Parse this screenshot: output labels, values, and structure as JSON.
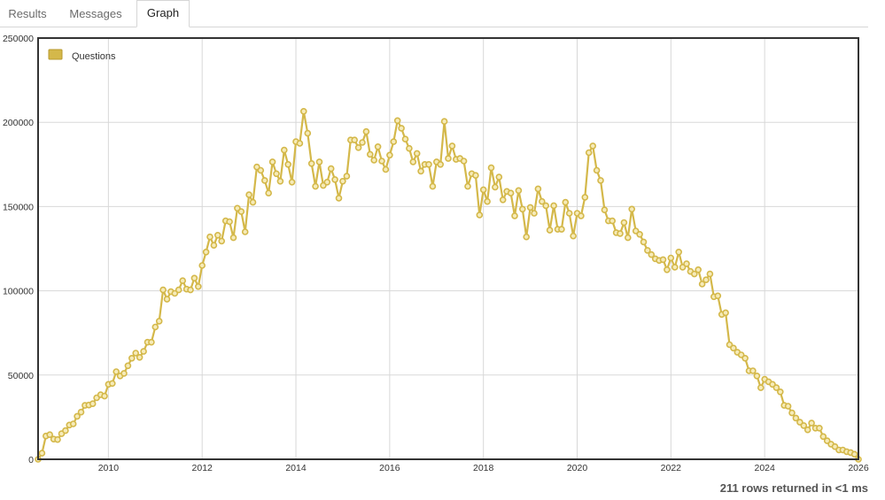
{
  "tabs": [
    {
      "label": "Results",
      "active": false
    },
    {
      "label": "Messages",
      "active": false
    },
    {
      "label": "Graph",
      "active": true
    }
  ],
  "footer": {
    "status": "211 rows returned in <1 ms"
  },
  "colors": {
    "series": "#d4b84a",
    "marker_fill": "#f6ebb8",
    "grid": "#d8d8d8",
    "frame": "#333333"
  },
  "chart_data": {
    "type": "line",
    "series": [
      {
        "name": "Questions",
        "x": [
          "2008-07",
          "2008-08",
          "2008-09",
          "2008-10",
          "2008-11",
          "2008-12",
          "2009-01",
          "2009-02",
          "2009-03",
          "2009-04",
          "2009-05",
          "2009-06",
          "2009-07",
          "2009-08",
          "2009-09",
          "2009-10",
          "2009-11",
          "2009-12",
          "2010-01",
          "2010-02",
          "2010-03",
          "2010-04",
          "2010-05",
          "2010-06",
          "2010-07",
          "2010-08",
          "2010-09",
          "2010-10",
          "2010-11",
          "2010-12",
          "2011-01",
          "2011-02",
          "2011-03",
          "2011-04",
          "2011-05",
          "2011-06",
          "2011-07",
          "2011-08",
          "2011-09",
          "2011-10",
          "2011-11",
          "2011-12",
          "2012-01",
          "2012-02",
          "2012-03",
          "2012-04",
          "2012-05",
          "2012-06",
          "2012-07",
          "2012-08",
          "2012-09",
          "2012-10",
          "2012-11",
          "2012-12",
          "2013-01",
          "2013-02",
          "2013-03",
          "2013-04",
          "2013-05",
          "2013-06",
          "2013-07",
          "2013-08",
          "2013-09",
          "2013-10",
          "2013-11",
          "2013-12",
          "2014-01",
          "2014-02",
          "2014-03",
          "2014-04",
          "2014-05",
          "2014-06",
          "2014-07",
          "2014-08",
          "2014-09",
          "2014-10",
          "2014-11",
          "2014-12",
          "2015-01",
          "2015-02",
          "2015-03",
          "2015-04",
          "2015-05",
          "2015-06",
          "2015-07",
          "2015-08",
          "2015-09",
          "2015-10",
          "2015-11",
          "2015-12",
          "2016-01",
          "2016-02",
          "2016-03",
          "2016-04",
          "2016-05",
          "2016-06",
          "2016-07",
          "2016-08",
          "2016-09",
          "2016-10",
          "2016-11",
          "2016-12",
          "2017-01",
          "2017-02",
          "2017-03",
          "2017-04",
          "2017-05",
          "2017-06",
          "2017-07",
          "2017-08",
          "2017-09",
          "2017-10",
          "2017-11",
          "2017-12",
          "2018-01",
          "2018-02",
          "2018-03",
          "2018-04",
          "2018-05",
          "2018-06",
          "2018-07",
          "2018-08",
          "2018-09",
          "2018-10",
          "2018-11",
          "2018-12",
          "2019-01",
          "2019-02",
          "2019-03",
          "2019-04",
          "2019-05",
          "2019-06",
          "2019-07",
          "2019-08",
          "2019-09",
          "2019-10",
          "2019-11",
          "2019-12",
          "2020-01",
          "2020-02",
          "2020-03",
          "2020-04",
          "2020-05",
          "2020-06",
          "2020-07",
          "2020-08",
          "2020-09",
          "2020-10",
          "2020-11",
          "2020-12",
          "2021-01",
          "2021-02",
          "2021-03",
          "2021-04",
          "2021-05",
          "2021-06",
          "2021-07",
          "2021-08",
          "2021-09",
          "2021-10",
          "2021-11",
          "2021-12",
          "2022-01",
          "2022-02",
          "2022-03",
          "2022-04",
          "2022-05",
          "2022-06",
          "2022-07",
          "2022-08",
          "2022-09",
          "2022-10",
          "2022-11",
          "2022-12",
          "2023-01",
          "2023-02",
          "2023-03",
          "2023-04",
          "2023-05",
          "2023-06",
          "2023-07",
          "2023-08",
          "2023-09",
          "2023-10",
          "2023-11",
          "2023-12",
          "2024-01",
          "2024-02",
          "2024-03",
          "2024-04",
          "2024-05",
          "2024-06",
          "2024-07",
          "2024-08",
          "2024-09",
          "2024-10",
          "2024-11",
          "2024-12",
          "2025-01",
          "2025-02",
          "2025-03",
          "2025-04",
          "2025-05",
          "2025-06",
          "2025-07",
          "2025-08",
          "2025-09",
          "2025-10",
          "2025-11",
          "2025-12",
          "2026-01"
        ],
        "values": [
          0,
          3600,
          13800,
          14600,
          12000,
          11700,
          15200,
          17000,
          20300,
          21000,
          25500,
          28000,
          32000,
          32200,
          33000,
          36500,
          38300,
          37500,
          44500,
          45000,
          52000,
          49500,
          51000,
          55500,
          60000,
          63000,
          60500,
          64000,
          69500,
          69500,
          78500,
          82000,
          100500,
          95000,
          99500,
          98500,
          100500,
          106000,
          101000,
          100500,
          107500,
          102500,
          115000,
          123000,
          132000,
          127000,
          133000,
          129500,
          141500,
          141000,
          131500,
          149000,
          147000,
          135000,
          157000,
          152500,
          173500,
          171500,
          165500,
          158000,
          176500,
          169500,
          165000,
          183500,
          175000,
          164500,
          188500,
          187500,
          206500,
          193500,
          175500,
          162000,
          176500,
          162500,
          164500,
          172500,
          166000,
          155000,
          165000,
          168000,
          189500,
          189500,
          185000,
          188000,
          194500,
          181000,
          177500,
          185500,
          177000,
          172000,
          180500,
          188500,
          201000,
          196500,
          190000,
          184500,
          176500,
          181500,
          171000,
          175000,
          175000,
          162000,
          176500,
          175000,
          200500,
          178500,
          186000,
          178000,
          178500,
          177000,
          162000,
          169500,
          168500,
          145000,
          160000,
          153000,
          173000,
          161500,
          167500,
          154000,
          159000,
          158000,
          144500,
          159500,
          148500,
          132000,
          149500,
          146000,
          160500,
          153000,
          150500,
          136000,
          150500,
          136500,
          136500,
          152500,
          146000,
          132500,
          146000,
          144500,
          155500,
          182000,
          186000,
          171500,
          165500,
          148000,
          141500,
          141500,
          134500,
          134000,
          140500,
          131500,
          148500,
          135500,
          133500,
          129000,
          124000,
          121500,
          119000,
          118000,
          118500,
          112500,
          119500,
          114000,
          123000,
          114000,
          116000,
          111500,
          110000,
          112500,
          104000,
          106500,
          110000,
          96500,
          97000,
          86000,
          87000,
          68000,
          66000,
          63500,
          62000,
          60000,
          52500,
          52500,
          49500,
          42500,
          47500,
          46000,
          44500,
          42500,
          40000,
          32000,
          31500,
          27500,
          24500,
          22000,
          20000,
          17500,
          21500,
          18500,
          18500,
          13500,
          11000,
          9000,
          7500,
          5500,
          5500,
          4500,
          4000,
          3000,
          0
        ]
      }
    ],
    "xlim": [
      "2008-07",
      "2026-01"
    ],
    "x_ticks": [
      "2010",
      "2012",
      "2014",
      "2016",
      "2018",
      "2020",
      "2022",
      "2024",
      "2026"
    ],
    "ylim": [
      0,
      250000
    ],
    "y_ticks": [
      0,
      50000,
      100000,
      150000,
      200000,
      250000
    ],
    "title": "",
    "xlabel": "",
    "ylabel": "",
    "grid": true,
    "legend": "top-left"
  }
}
